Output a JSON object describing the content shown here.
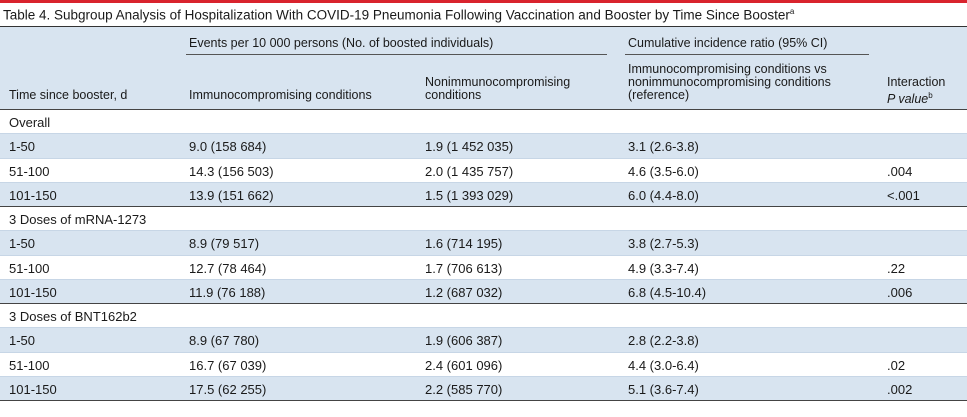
{
  "title": "Table 4. Subgroup Analysis of Hospitalization With COVID-19 Pneumonia Following Vaccination and Booster by Time Since Booster",
  "title_footnote": "a",
  "header": {
    "group1": "Events per 10 000 persons (No. of boosted individuals)",
    "group2": "Cumulative incidence ratio (95% CI)",
    "col0": "Time since booster, d",
    "col1": "Immunocompromising conditions",
    "col2_line1": "Nonimmunocompromising",
    "col2_line2": "conditions",
    "col3_line1": "Immunocompromising conditions vs",
    "col3_line2": "nonimmunocompromising conditions",
    "col3_line3": "(reference)",
    "col4_line1": "Interaction",
    "col4_line2": "P value",
    "col4_footnote": "b"
  },
  "sections": [
    {
      "label": "Overall",
      "rows": [
        {
          "time": "1-50",
          "immuno": "9.0 (158 684)",
          "nonimmuno": "1.9 (1 452 035)",
          "ratio": "3.1 (2.6-3.8)",
          "p": ""
        },
        {
          "time": "51-100",
          "immuno": "14.3 (156 503)",
          "nonimmuno": "2.0 (1 435 757)",
          "ratio": "4.6 (3.5-6.0)",
          "p": ".004"
        },
        {
          "time": "101-150",
          "immuno": "13.9 (151 662)",
          "nonimmuno": "1.5 (1 393 029)",
          "ratio": "6.0 (4.4-8.0)",
          "p": "<.001"
        }
      ]
    },
    {
      "label": "3 Doses of mRNA-1273",
      "rows": [
        {
          "time": "1-50",
          "immuno": "8.9 (79 517)",
          "nonimmuno": "1.6 (714 195)",
          "ratio": "3.8 (2.7-5.3)",
          "p": ""
        },
        {
          "time": "51-100",
          "immuno": "12.7 (78 464)",
          "nonimmuno": "1.7 (706 613)",
          "ratio": "4.9 (3.3-7.4)",
          "p": ".22"
        },
        {
          "time": "101-150",
          "immuno": "11.9 (76 188)",
          "nonimmuno": "1.2 (687 032)",
          "ratio": "6.8 (4.5-10.4)",
          "p": ".006"
        }
      ]
    },
    {
      "label": "3 Doses of BNT162b2",
      "rows": [
        {
          "time": "1-50",
          "immuno": "8.9 (67 780)",
          "nonimmuno": "1.9 (606 387)",
          "ratio": "2.8 (2.2-3.8)",
          "p": ""
        },
        {
          "time": "51-100",
          "immuno": "16.7 (67 039)",
          "nonimmuno": "2.4 (601 096)",
          "ratio": "4.4 (3.0-6.4)",
          "p": ".02"
        },
        {
          "time": "101-150",
          "immuno": "17.5 (62 255)",
          "nonimmuno": "2.2 (585 770)",
          "ratio": "5.1 (3.6-7.4)",
          "p": ".002"
        }
      ]
    }
  ]
}
